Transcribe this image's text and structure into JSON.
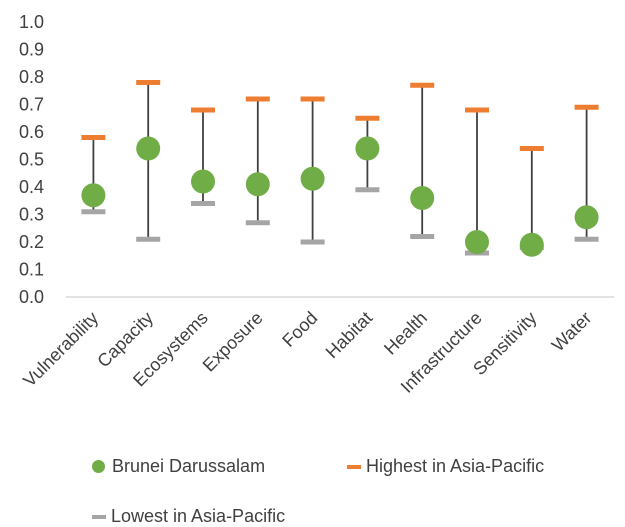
{
  "chart_data": {
    "type": "scatter",
    "title": "",
    "xlabel": "",
    "ylabel": "",
    "ylim": [
      0,
      1.0
    ],
    "y_ticks": [
      "0.0",
      "0.1",
      "0.2",
      "0.3",
      "0.4",
      "0.5",
      "0.6",
      "0.7",
      "0.8",
      "0.9",
      "1.0"
    ],
    "grid": false,
    "legend_position": "bottom",
    "categories": [
      "Vulnerability",
      "Capacity",
      "Ecosystems",
      "Exposure",
      "Food",
      "Habitat",
      "Health",
      "Infrastructure",
      "Sensitivity",
      "Water"
    ],
    "series": [
      {
        "name": "Brunei Darussalam",
        "marker": "circle",
        "color": "#70AD47",
        "values": [
          0.37,
          0.54,
          0.42,
          0.41,
          0.43,
          0.54,
          0.36,
          0.2,
          0.19,
          0.29
        ]
      },
      {
        "name": "Highest in Asia-Pacific",
        "marker": "dash",
        "color": "#ED7D31",
        "values": [
          0.58,
          0.78,
          0.68,
          0.72,
          0.72,
          0.65,
          0.77,
          0.68,
          0.54,
          0.69
        ]
      },
      {
        "name": "Lowest in Asia-Pacific",
        "marker": "dash",
        "color": "#A5A5A5",
        "values": [
          0.31,
          0.21,
          0.34,
          0.27,
          0.2,
          0.39,
          0.22,
          0.16,
          0.18,
          0.21
        ]
      }
    ],
    "range_line_color": "#404040"
  }
}
